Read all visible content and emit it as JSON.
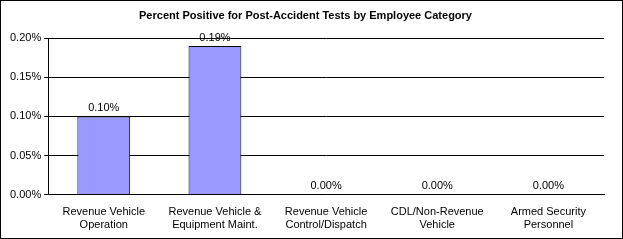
{
  "chart_data": {
    "type": "bar",
    "title": "Percent Positive for Post-Accident Tests by Employee Category",
    "categories": [
      "Revenue Vehicle Operation",
      "Revenue Vehicle & Equipment Maint.",
      "Revenue Vehicle Control/Dispatch",
      "CDL/Non-Revenue Vehicle",
      "Armed Security Personnel"
    ],
    "values": [
      0.1,
      0.19,
      0,
      0,
      0
    ],
    "value_labels": [
      "0.10%",
      "0.19%",
      "0.00%",
      "0.00%",
      "0.00%"
    ],
    "color": "#9999ff",
    "ylim": [
      0,
      0.2
    ],
    "yticks": [
      {
        "value": 0,
        "label": "0.00%"
      },
      {
        "value": 0.05,
        "label": "0.05%"
      },
      {
        "value": 0.1,
        "label": "0.10%"
      },
      {
        "value": 0.15,
        "label": "0.15%"
      },
      {
        "value": 0.2,
        "label": "0.20%"
      }
    ],
    "grid": true,
    "data_labels": true
  }
}
